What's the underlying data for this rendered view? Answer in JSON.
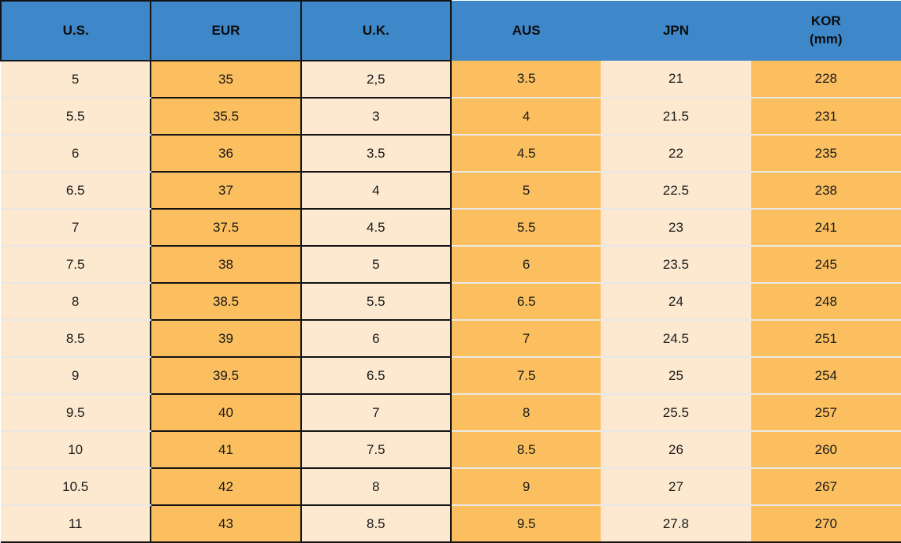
{
  "chart_data": {
    "type": "table",
    "columns": [
      {
        "key": "us",
        "label": "U.S."
      },
      {
        "key": "eur",
        "label": "EUR"
      },
      {
        "key": "uk",
        "label": "U.K."
      },
      {
        "key": "aus",
        "label": "AUS"
      },
      {
        "key": "jpn",
        "label": "JPN"
      },
      {
        "key": "kor",
        "label": "KOR",
        "sublabel": "(mm)"
      }
    ],
    "rows": [
      [
        "5",
        "35",
        "2,5",
        "3.5",
        "21",
        "228"
      ],
      [
        "5.5",
        "35.5",
        "3",
        "4",
        "21.5",
        "231"
      ],
      [
        "6",
        "36",
        "3.5",
        "4.5",
        "22",
        "235"
      ],
      [
        "6.5",
        "37",
        "4",
        "5",
        "22.5",
        "238"
      ],
      [
        "7",
        "37.5",
        "4.5",
        "5.5",
        "23",
        "241"
      ],
      [
        "7.5",
        "38",
        "5",
        "6",
        "23.5",
        "245"
      ],
      [
        "8",
        "38.5",
        "5.5",
        "6.5",
        "24",
        "248"
      ],
      [
        "8.5",
        "39",
        "6",
        "7",
        "24.5",
        "251"
      ],
      [
        "9",
        "39.5",
        "6.5",
        "7.5",
        "25",
        "254"
      ],
      [
        "9.5",
        "40",
        "7",
        "8",
        "25.5",
        "257"
      ],
      [
        "10",
        "41",
        "7.5",
        "8.5",
        "26",
        "260"
      ],
      [
        "10.5",
        "42",
        "8",
        "9",
        "27",
        "267"
      ],
      [
        "11",
        "43",
        "8.5",
        "9.5",
        "27.8",
        "270"
      ]
    ]
  },
  "colors": {
    "header_bg": "#3E87C8",
    "orange_cell": "#FBBF5F",
    "cream_cell": "#FDE9D0",
    "border_black": "#141414",
    "row_separator_light": "#E9E8E6",
    "text": "#1B1B1B"
  }
}
